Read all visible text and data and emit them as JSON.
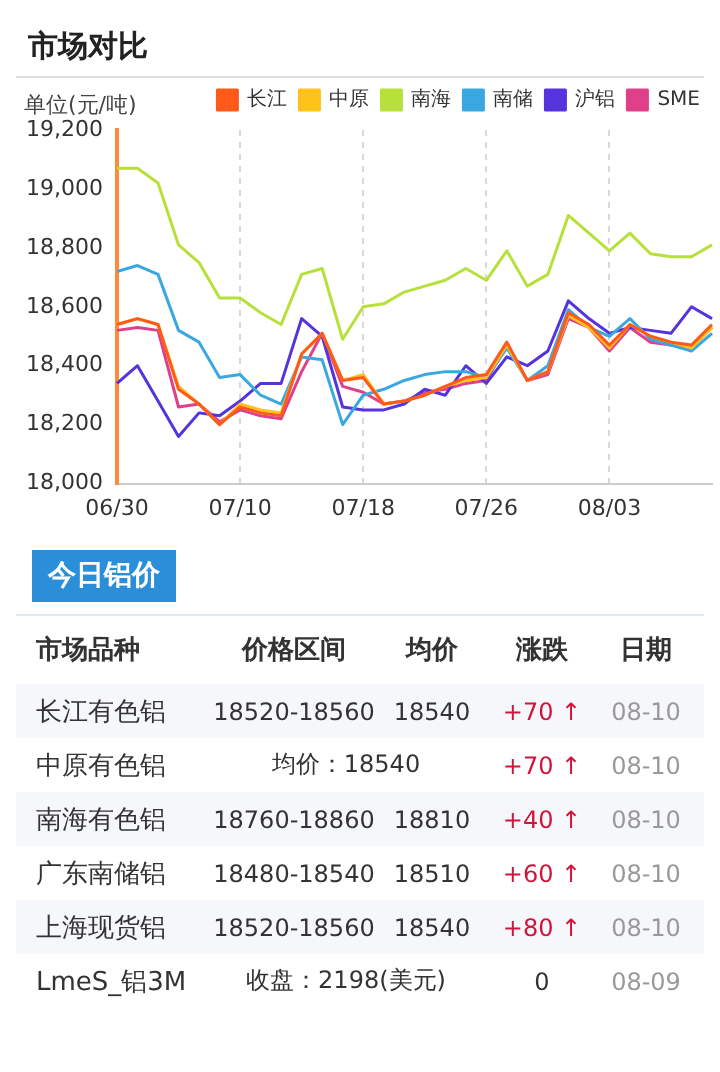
{
  "chart_data": [
    {
      "type": "line",
      "title": "市场对比",
      "ylabel": "单位(元/吨)",
      "categories": [
        "06/30",
        null,
        null,
        null,
        null,
        null,
        "07/10",
        null,
        null,
        null,
        null,
        null,
        "07/18",
        null,
        null,
        null,
        null,
        null,
        "07/26",
        null,
        null,
        null,
        null,
        null,
        "08/03",
        null,
        null,
        null,
        null,
        null
      ],
      "series": [
        {
          "name": "长江",
          "color": "#ff5a1a",
          "values": [
            18540,
            18560,
            18540,
            18320,
            18270,
            18200,
            18260,
            18240,
            18230,
            18440,
            18510,
            18350,
            18360,
            18270,
            18280,
            18300,
            18330,
            18360,
            18370,
            18480,
            18350,
            18380,
            18580,
            18540,
            18470,
            18540,
            18500,
            18480,
            18470,
            18540
          ]
        },
        {
          "name": "中原",
          "color": "#ffc21a",
          "values": [
            18540,
            18560,
            18540,
            18330,
            18270,
            18200,
            18270,
            18250,
            18240,
            18440,
            18510,
            18350,
            18370,
            18270,
            18280,
            18300,
            18330,
            18350,
            18360,
            18470,
            18350,
            18380,
            18570,
            18530,
            18460,
            18540,
            18500,
            18480,
            18460,
            18530
          ]
        },
        {
          "name": "南海",
          "color": "#b7e03a",
          "values": [
            19070,
            19070,
            19020,
            18810,
            18750,
            18630,
            18630,
            18580,
            18540,
            18710,
            18730,
            18490,
            18600,
            18610,
            18650,
            18670,
            18690,
            18730,
            18690,
            18790,
            18670,
            18710,
            18910,
            18850,
            18790,
            18850,
            18780,
            18770,
            18770,
            18810
          ]
        },
        {
          "name": "南储",
          "color": "#3aa8e0",
          "values": [
            18720,
            18740,
            18710,
            18520,
            18480,
            18360,
            18370,
            18300,
            18270,
            18430,
            18420,
            18200,
            18300,
            18320,
            18350,
            18370,
            18380,
            18380,
            18360,
            18460,
            18350,
            18400,
            18590,
            18530,
            18500,
            18560,
            18490,
            18470,
            18450,
            18510
          ]
        },
        {
          "name": "沪铝",
          "color": "#5533dd",
          "values": [
            18340,
            18400,
            18280,
            18160,
            18240,
            18230,
            18280,
            18340,
            18340,
            18560,
            18500,
            18260,
            18250,
            18250,
            18270,
            18320,
            18300,
            18400,
            18340,
            18430,
            18400,
            18450,
            18620,
            18560,
            18510,
            18530,
            18520,
            18510,
            18600,
            18560
          ]
        },
        {
          "name": "SME",
          "color": "#e0408a",
          "values": [
            18520,
            18530,
            18520,
            18260,
            18270,
            18210,
            18250,
            18230,
            18220,
            18380,
            18510,
            18330,
            18310,
            18270,
            18280,
            18310,
            18320,
            18340,
            18350,
            18470,
            18350,
            18370,
            18560,
            18530,
            18450,
            18530,
            18480,
            18470,
            18460,
            18530
          ]
        }
      ],
      "ylim": [
        18000,
        19200
      ],
      "yticks": [
        {
          "value": 18000,
          "label": "18,000"
        },
        {
          "value": 18200,
          "label": "18,200"
        },
        {
          "value": 18400,
          "label": "18,400"
        },
        {
          "value": 18600,
          "label": "18,600"
        },
        {
          "value": 18800,
          "label": "18,800"
        },
        {
          "value": 19000,
          "label": "19,000"
        },
        {
          "value": 19200,
          "label": "19,200"
        }
      ],
      "grid": "x",
      "legend": "top",
      "marker": "none",
      "line_style": "solid"
    },
    {
      "type": "other",
      "title": "今日铝价",
      "categories": [
        "市场品种",
        "价格区间",
        "均价",
        "涨跌",
        "日期"
      ],
      "y_categories": [
        "长江有色铝",
        "中原有色铝",
        "南海有色铝",
        "广东南储铝",
        "上海现货铝",
        "LmeS_铝3M"
      ],
      "cell_labels": [
        [
          "18520-18560",
          "18540",
          "+70 ↑",
          "08-10"
        ],
        [
          "均价：18540",
          null,
          "+70 ↑",
          "08-10"
        ],
        [
          "18760-18860",
          "18810",
          "+40 ↑",
          "08-10"
        ],
        [
          "18480-18540",
          "18510",
          "+60 ↑",
          "08-10"
        ],
        [
          "18520-18560",
          "18540",
          "+80 ↑",
          "08-10"
        ],
        [
          "收盘：2198(美元)",
          null,
          "0",
          "08-09"
        ]
      ]
    }
  ]
}
